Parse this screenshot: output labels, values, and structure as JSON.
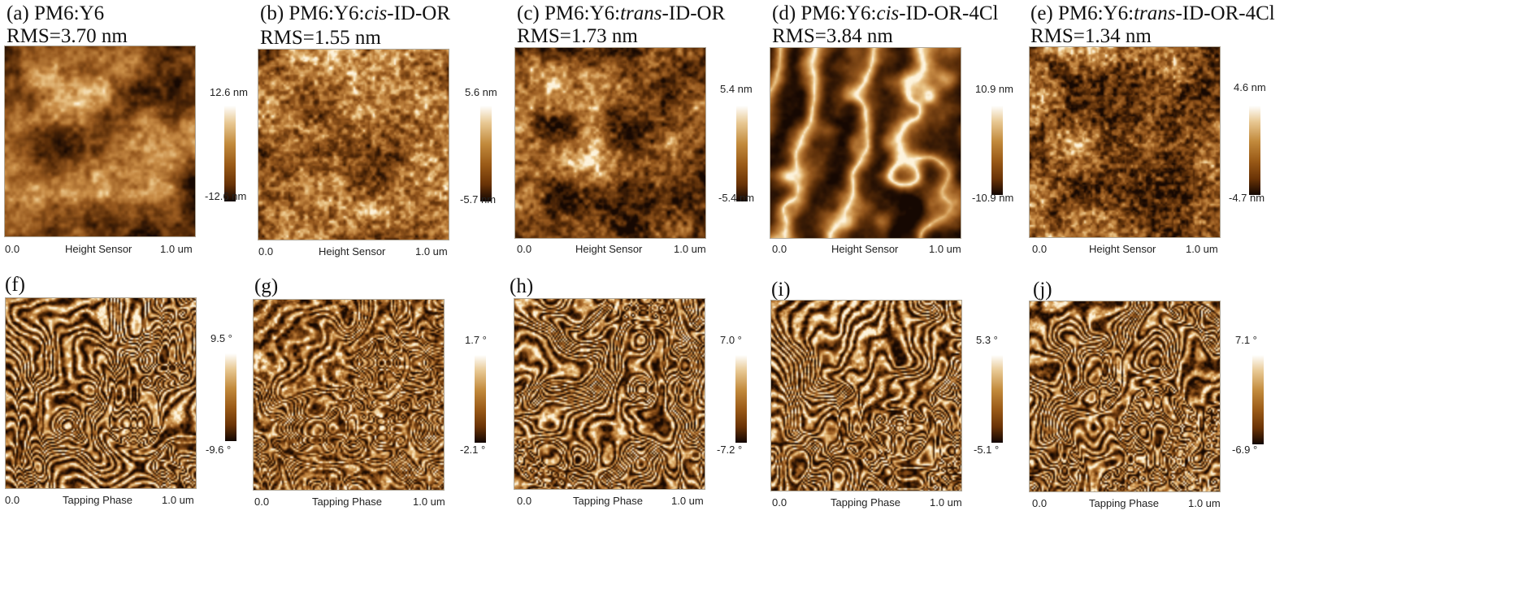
{
  "colors": {
    "afm_dark": "#2a1102",
    "afm_mid": "#8b4f17",
    "afm_light": "#e9c58a",
    "afm_highlight": "#fdf3dc"
  },
  "axis": {
    "start": "0.0",
    "end": "1.0 um"
  },
  "panels": [
    {
      "id": "a",
      "letter": "(a)",
      "title_pre": "PM6:Y6",
      "title_it": "",
      "title_post": "",
      "rms": "RMS=3.70 nm",
      "cb_max": "12.6 nm",
      "cb_min": "-12.6 nm",
      "sensor": "Height Sensor",
      "kind": "height",
      "pattern": "blobby"
    },
    {
      "id": "b",
      "letter": "(b)",
      "title_pre": "PM6:Y6:",
      "title_it": "cis",
      "title_post": "-ID-OR",
      "rms": "RMS=1.55 nm",
      "cb_max": "5.6 nm",
      "cb_min": "-5.7 nm",
      "sensor": "Height Sensor",
      "kind": "height",
      "pattern": "grainy"
    },
    {
      "id": "c",
      "letter": "(c)",
      "title_pre": "PM6:Y6:",
      "title_it": "trans",
      "title_post": "-ID-OR",
      "rms": "RMS=1.73 nm",
      "cb_max": "5.4 nm",
      "cb_min": "-5.4 nm",
      "sensor": "Height Sensor",
      "kind": "height",
      "pattern": "mixed"
    },
    {
      "id": "d",
      "letter": "(d)",
      "title_pre": "PM6:Y6:",
      "title_it": "cis",
      "title_post": "-ID-OR-4Cl",
      "rms": "RMS=3.84 nm",
      "cb_max": "10.9 nm",
      "cb_min": "-10.9 nm",
      "sensor": "Height Sensor",
      "kind": "height",
      "pattern": "ridges"
    },
    {
      "id": "e",
      "letter": "(e)",
      "title_pre": "PM6:Y6:",
      "title_it": "trans",
      "title_post": "-ID-OR-4Cl",
      "rms": "RMS=1.34 nm",
      "cb_max": "4.6 nm",
      "cb_min": "-4.7 nm",
      "sensor": "Height Sensor",
      "kind": "height",
      "pattern": "fine"
    },
    {
      "id": "f",
      "letter": "(f)",
      "title_pre": "",
      "title_it": "",
      "title_post": "",
      "rms": "",
      "cb_max": "9.5 °",
      "cb_min": "-9.6 °",
      "sensor": "Tapping Phase",
      "kind": "phase",
      "pattern": "phase1"
    },
    {
      "id": "g",
      "letter": "(g)",
      "title_pre": "",
      "title_it": "",
      "title_post": "",
      "rms": "",
      "cb_max": "1.7 °",
      "cb_min": "-2.1 °",
      "sensor": "Tapping Phase",
      "kind": "phase",
      "pattern": "phase2"
    },
    {
      "id": "h",
      "letter": "(h)",
      "title_pre": "",
      "title_it": "",
      "title_post": "",
      "rms": "",
      "cb_max": "7.0 °",
      "cb_min": "-7.2 °",
      "sensor": "Tapping Phase",
      "kind": "phase",
      "pattern": "phase3"
    },
    {
      "id": "i",
      "letter": "(i)",
      "title_pre": "",
      "title_it": "",
      "title_post": "",
      "rms": "",
      "cb_max": "5.3 °",
      "cb_min": "-5.1 °",
      "sensor": "Tapping Phase",
      "kind": "phase",
      "pattern": "phase4"
    },
    {
      "id": "j",
      "letter": "(j)",
      "title_pre": "",
      "title_it": "",
      "title_post": "",
      "rms": "",
      "cb_max": "7.1 °",
      "cb_min": "-6.9 °",
      "sensor": "Tapping Phase",
      "kind": "phase",
      "pattern": "phase5"
    }
  ]
}
